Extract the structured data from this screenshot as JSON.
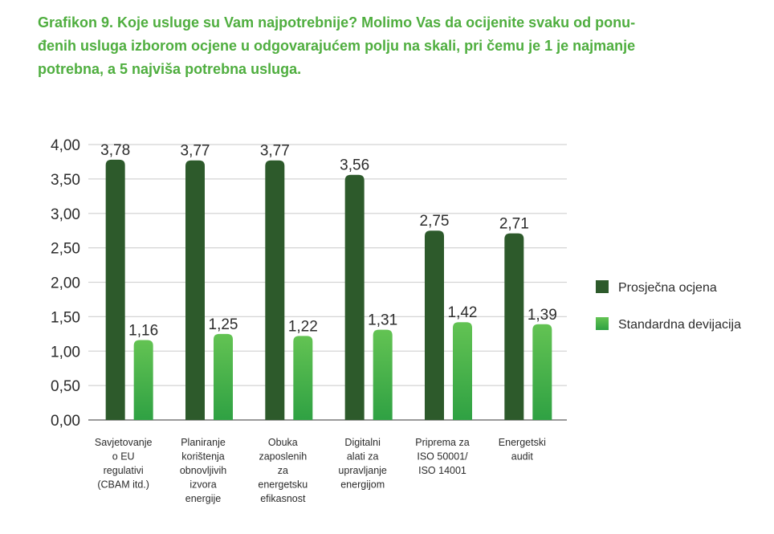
{
  "title": "Grafikon 9. Koje usluge su Vam najpotrebnije? Molimo Vas da ocijenite svaku od ponu­đenih usluga izborom ocjene u odgovarajućem polju na skali, pri čemu je 1 je najmanje potrebna, a 5 najviša potrebna usluga.",
  "title_lines": [
    "Grafikon 9. Koje usluge su Vam najpotrebnije? Molimo Vas da ocijenite svaku od ponu-",
    "đenih usluga izborom ocjene u odgovarajućem polju na skali, pri čemu je 1 je najmanje",
    "potrebna, a 5 najviša potrebna usluga."
  ],
  "colors": {
    "title": "#4fae3f",
    "prosjecna": "#2d5a2b",
    "devijacija_top": "#63c353",
    "devijacija_bottom": "#2fa143",
    "grid": "#d4d4d4",
    "axis": "#9a9a9a"
  },
  "chart_data": {
    "type": "bar",
    "categories": [
      [
        "Savjetovanje",
        "o EU",
        "regulativi",
        "(CBAM itd.)"
      ],
      [
        "Planiranje",
        "korištenja",
        "obnovljivih",
        "izvora",
        "energije"
      ],
      [
        "Obuka",
        "zaposlenih",
        "za",
        "energetsku",
        "efikasnost"
      ],
      [
        "Digitalni",
        "alati za",
        "upravljanje",
        "energijom"
      ],
      [
        "Priprema za",
        "ISO 50001/",
        "ISO 14001"
      ],
      [
        "Energetski",
        "audit"
      ]
    ],
    "series": [
      {
        "name": "Prosječna ocjena",
        "values": [
          3.78,
          3.77,
          3.77,
          3.56,
          2.75,
          2.71
        ],
        "labels": [
          "3,78",
          "3,77",
          "3,77",
          "3,56",
          "2,75",
          "2,71"
        ]
      },
      {
        "name": "Standardna devijacija",
        "values": [
          1.16,
          1.25,
          1.22,
          1.31,
          1.42,
          1.39
        ],
        "labels": [
          "1,16",
          "1,25",
          "1,22",
          "1,31",
          "1,42",
          "1,39"
        ]
      }
    ],
    "ylim": [
      0,
      4
    ],
    "yticks": [
      0,
      0.5,
      1,
      1.5,
      2,
      2.5,
      3,
      3.5,
      4
    ],
    "ytick_labels": [
      "0,00",
      "0,50",
      "1,00",
      "1,50",
      "2,00",
      "2,50",
      "3,00",
      "3,50",
      "4,00"
    ],
    "grid": true,
    "legend": "right"
  }
}
